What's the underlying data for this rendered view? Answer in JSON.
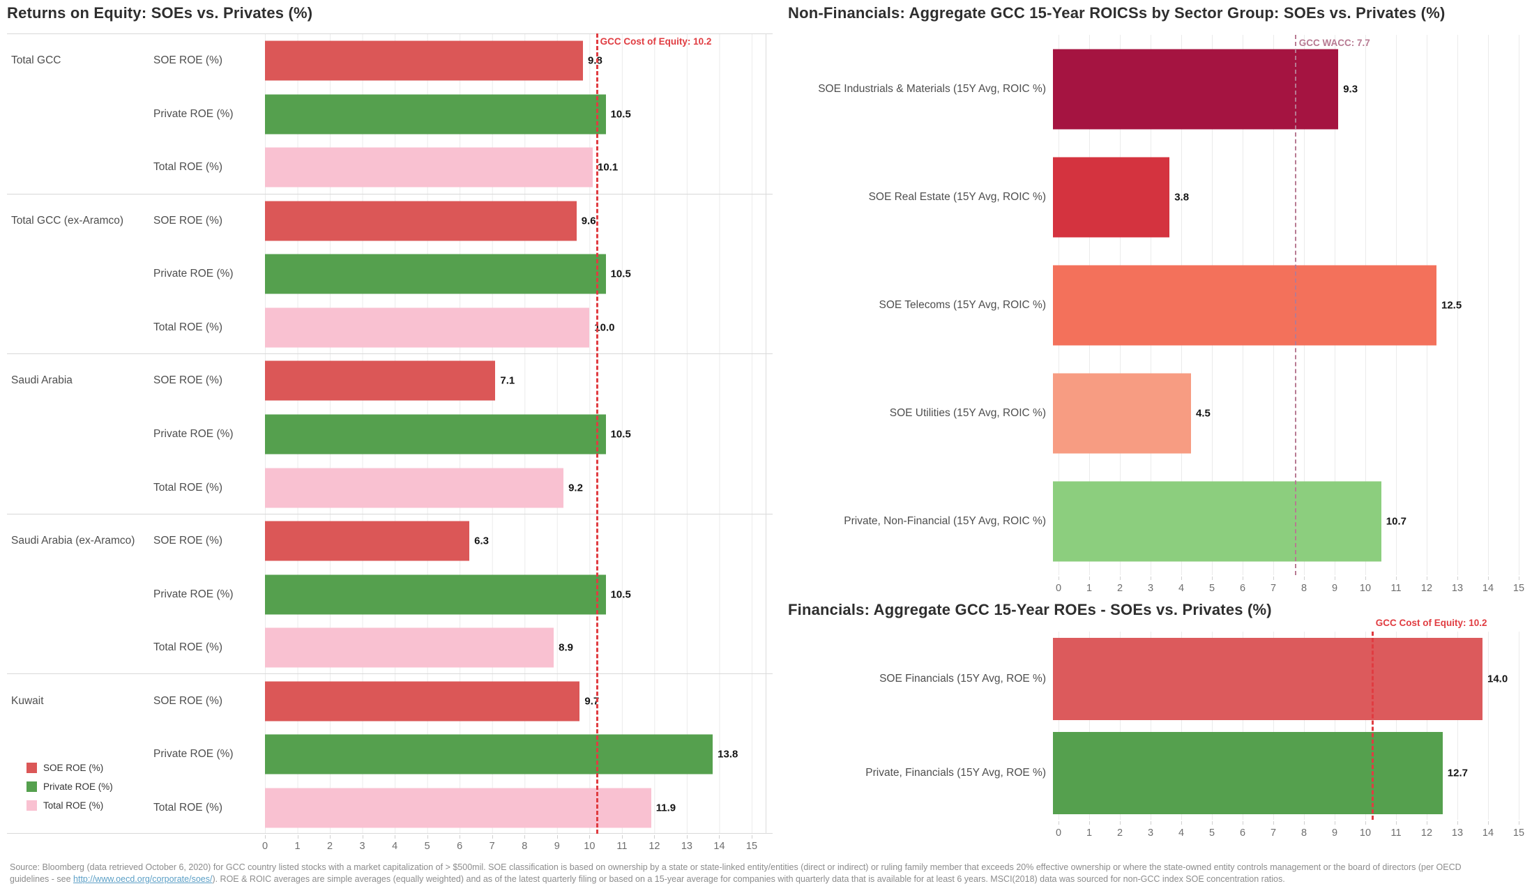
{
  "colors": {
    "soe_red": "#DB5757",
    "private_green": "#55A04E",
    "total_pink": "#F9C1D1",
    "industrials_crimson": "#A51441",
    "real_estate_red": "#D4333F",
    "telecoms_coral": "#F3715B",
    "utilities_salmon": "#F79C82",
    "private_nonfin_green": "#8CCE7E",
    "soe_fin_red": "#DC5A5C",
    "ref_red": "#E03C41",
    "ref_mauve": "#B77A92",
    "gridline": "#EBEBEB",
    "separator": "#D8D8D8"
  },
  "chart_data": [
    {
      "type": "bar",
      "orientation": "horizontal",
      "title": "Returns on Equity: SOEs vs. Privates (%)",
      "categories": [
        "Total GCC",
        "Total GCC (ex-Aramco)",
        "Saudi Arabia",
        "Saudi Arabia (ex-Aramco)",
        "Kuwait"
      ],
      "series": [
        {
          "name": "SOE ROE (%)",
          "color": "#DB5757",
          "values": [
            9.8,
            9.6,
            7.1,
            6.3,
            9.7
          ]
        },
        {
          "name": "Private ROE (%)",
          "color": "#55A04E",
          "values": [
            10.5,
            10.5,
            10.5,
            10.5,
            13.8
          ]
        },
        {
          "name": "Total ROE (%)",
          "color": "#F9C1D1",
          "values": [
            10.1,
            10.0,
            9.2,
            8.9,
            11.9
          ]
        }
      ],
      "xlim": [
        0,
        15
      ],
      "x_ticks": [
        0,
        1,
        2,
        3,
        4,
        5,
        6,
        7,
        8,
        9,
        10,
        11,
        12,
        13,
        14,
        15
      ],
      "grid": true,
      "legend_position": "bottom-left",
      "legend": [
        "SOE ROE (%)",
        "Private ROE (%)",
        "Total ROE (%)"
      ],
      "reference_line": {
        "label": "GCC Cost of Equity: 10.2",
        "value": 10.2,
        "color": "#E03C41"
      }
    },
    {
      "type": "bar",
      "orientation": "horizontal",
      "title": "Non-Financials: Aggregate GCC 15-Year ROICSs by Sector Group: SOEs vs. Privates (%)",
      "categories": [
        "SOE Industrials & Materials (15Y Avg, ROIC %)",
        "SOE Real Estate (15Y Avg, ROIC %)",
        "SOE Telecoms (15Y Avg, ROIC %)",
        "SOE Utilities (15Y Avg, ROIC %)",
        "Private, Non-Financial (15Y Avg, ROIC %)"
      ],
      "values": [
        9.3,
        3.8,
        12.5,
        4.5,
        10.7
      ],
      "bar_colors": [
        "#A51441",
        "#D4333F",
        "#F3715B",
        "#F79C82",
        "#8CCE7E"
      ],
      "xlim": [
        0,
        15
      ],
      "x_ticks": [
        0,
        1,
        2,
        3,
        4,
        5,
        6,
        7,
        8,
        9,
        10,
        11,
        12,
        13,
        14,
        15
      ],
      "grid": true,
      "reference_line": {
        "label": "GCC WACC: 7.7",
        "value": 7.7,
        "color": "#B77A92"
      }
    },
    {
      "type": "bar",
      "orientation": "horizontal",
      "title": "Financials: Aggregate GCC 15-Year ROEs - SOEs vs. Privates (%)",
      "categories": [
        "SOE Financials (15Y Avg, ROE %)",
        "Private, Financials (15Y Avg, ROE %)"
      ],
      "values": [
        14.0,
        12.7
      ],
      "bar_colors": [
        "#DC5A5C",
        "#55A04E"
      ],
      "xlim": [
        0,
        15
      ],
      "x_ticks": [
        0,
        1,
        2,
        3,
        4,
        5,
        6,
        7,
        8,
        9,
        10,
        11,
        12,
        13,
        14,
        15
      ],
      "grid": true,
      "reference_line": {
        "label": "GCC Cost of Equity: 10.2",
        "value": 10.2,
        "color": "#E03C41"
      }
    }
  ],
  "footer": {
    "line1": "Source: Bloomberg (data retrieved October 6, 2020) for GCC country listed stocks with a market capitalization of > $500mil. SOE classification is based on ownership by a state or state-linked entity/entities (direct or indirect) or ruling family member that exceeds 20% effective ownership or where the state-owned entity controls management or the board of directors (per OECD",
    "line2_prefix": "guidelines - see ",
    "link": "http://www.oecd.org/corporate/soes/",
    "line2_suffix": "). ROE & ROIC averages are simple averages (equally weighted) and as of the latest quarterly filing or based on a 15-year average for companies with quarterly data that is available for at least 6 years. MSCI(2018)  data was sourced for non-GCC index SOE concentration ratios."
  }
}
